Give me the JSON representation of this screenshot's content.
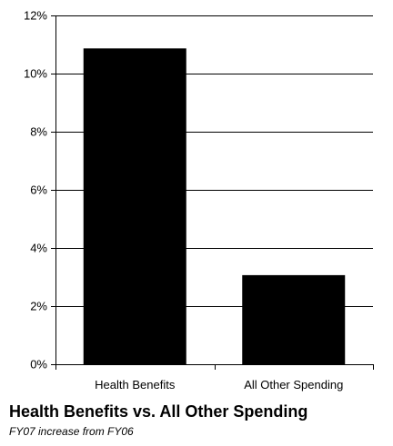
{
  "chart_data": {
    "type": "bar",
    "title": "Health Benefits vs. All Other Spending",
    "subtitle": "FY07 increase from FY06",
    "categories": [
      "Health Benefits",
      "All Other Spending"
    ],
    "values": [
      10.85,
      3.05
    ],
    "value_unit": "%",
    "xlabel": "",
    "ylabel": "",
    "ylim": [
      0,
      12
    ],
    "yticks": [
      0,
      2,
      4,
      6,
      8,
      10,
      12
    ],
    "ytick_labels": [
      "0%",
      "2%",
      "4%",
      "6%",
      "8%",
      "10%",
      "12%"
    ],
    "grid": true,
    "legend": "none",
    "colors": {
      "bar": "#000000",
      "grid": "#000000",
      "axis": "#000000",
      "background": "#ffffff"
    }
  }
}
